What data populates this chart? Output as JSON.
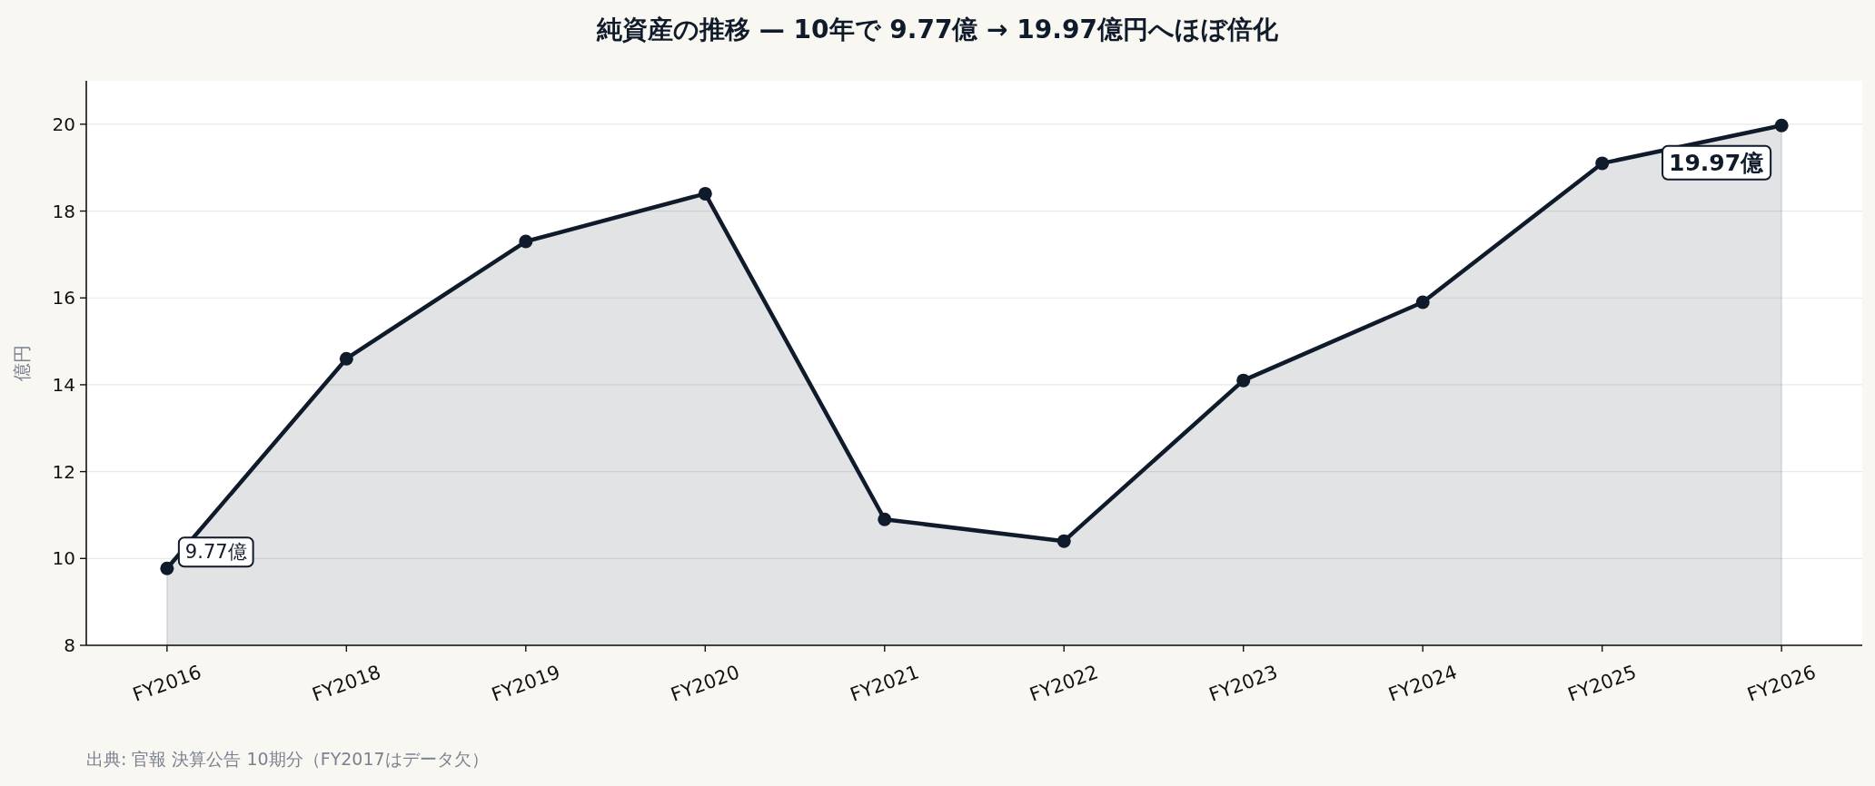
{
  "chart_data": {
    "type": "area",
    "title": "純資産の推移 — 10年で 9.77億 → 19.97億円へほぼ倍化",
    "ylabel": "億円",
    "categories": [
      "FY2016",
      "FY2018",
      "FY2019",
      "FY2020",
      "FY2021",
      "FY2022",
      "FY2023",
      "FY2024",
      "FY2025",
      "FY2026"
    ],
    "series": [
      {
        "color": "#0f1b2a",
        "values": [
          9.77,
          14.6,
          17.3,
          18.4,
          10.9,
          10.4,
          14.1,
          15.9,
          19.1,
          19.97
        ]
      }
    ],
    "ylim": [
      8,
      21
    ],
    "yticks": [
      8,
      10,
      12,
      14,
      16,
      18,
      20
    ],
    "grid": "y",
    "marker": "circle",
    "line_style": "solid",
    "annotations": [
      {
        "text": "9.77億",
        "x": "FY2016",
        "y": 9.77
      },
      {
        "text": "19.97億",
        "x": "FY2026",
        "y": 19.97
      },
      "出典: 官報 決算公告 10期分（FY2017はデータ欠）"
    ]
  }
}
